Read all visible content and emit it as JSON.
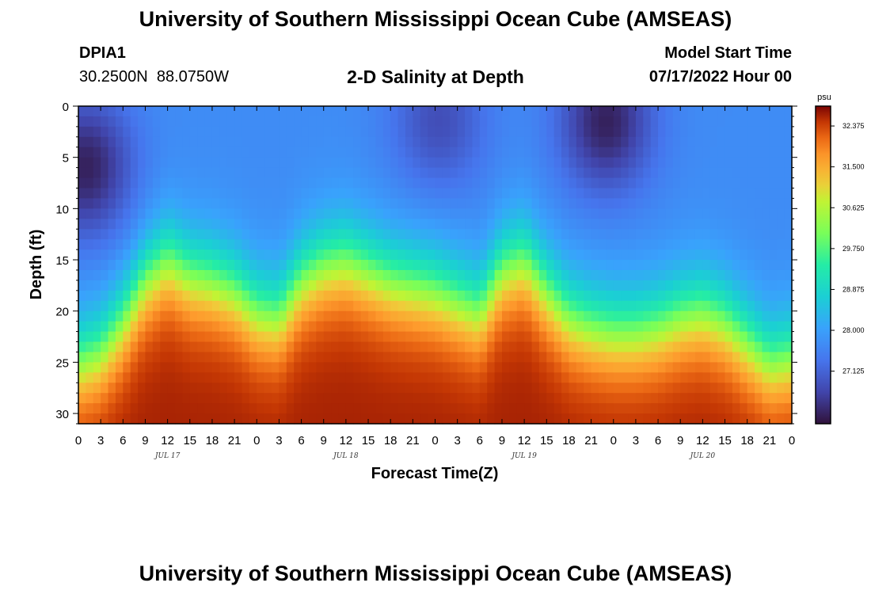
{
  "header": {
    "title": "University of Southern Mississippi Ocean Cube (AMSEAS)",
    "station": "DPIA1",
    "coordinates": "30.2500N  88.0750W",
    "subtitle": "2-D Salinity at Depth",
    "model_start_label": "Model Start Time",
    "model_start_value": "07/17/2022 Hour 00"
  },
  "footer": {
    "title": "University of Southern Mississippi Ocean Cube (AMSEAS)"
  },
  "chart_data": {
    "type": "heatmap",
    "title": "2-D Salinity at Depth",
    "xlabel": "Forecast Time(Z)",
    "ylabel": "Depth (ft)",
    "xlim": [
      0,
      96
    ],
    "ylim": [
      0,
      31
    ],
    "y_inverted": true,
    "x_ticks": [
      0,
      3,
      6,
      9,
      12,
      15,
      18,
      21,
      24,
      27,
      30,
      33,
      36,
      39,
      42,
      45,
      48,
      51,
      54,
      57,
      60,
      63,
      66,
      69,
      72,
      75,
      78,
      81,
      84,
      87,
      90,
      93,
      96
    ],
    "x_tick_labels": [
      "0",
      "3",
      "6",
      "9",
      "12",
      "15",
      "18",
      "21",
      "0",
      "3",
      "6",
      "9",
      "12",
      "15",
      "18",
      "21",
      "0",
      "3",
      "6",
      "9",
      "12",
      "15",
      "18",
      "21",
      "0",
      "3",
      "6",
      "9",
      "12",
      "15",
      "18",
      "21",
      "0"
    ],
    "day_labels": [
      {
        "label": "JUL 17",
        "x": 12
      },
      {
        "label": "JUL 18",
        "x": 36
      },
      {
        "label": "JUL 19",
        "x": 60
      },
      {
        "label": "JUL 20",
        "x": 84
      }
    ],
    "y_ticks": [
      0,
      5,
      10,
      15,
      20,
      25,
      30
    ],
    "y_tick_labels": [
      "0",
      "5",
      "10",
      "15",
      "20",
      "25",
      "30"
    ],
    "colorbar": {
      "unit": "psu",
      "min": 26.0,
      "max": 32.8,
      "ticks": [
        32.375,
        31.5,
        30.625,
        29.75,
        28.875,
        28.0,
        27.125
      ],
      "tick_labels": [
        "32.375",
        "31.500",
        "30.625",
        "29.750",
        "28.875",
        "28.000",
        "27.125"
      ]
    },
    "isohaline_depth_ft": {
      "time_h": [
        0,
        3,
        6,
        9,
        12,
        15,
        18,
        21,
        24,
        27,
        30,
        33,
        36,
        39,
        42,
        45,
        48,
        51,
        54,
        57,
        60,
        63,
        66,
        69,
        72,
        75,
        78,
        81,
        84,
        87,
        90,
        93,
        96
      ],
      "depth_ft": [
        25,
        24,
        21,
        17,
        15,
        16.5,
        17,
        18,
        20,
        20.5,
        17,
        15.5,
        15,
        16,
        17,
        17.5,
        18,
        19,
        20,
        16,
        15,
        18,
        20.5,
        21.5,
        22,
        22,
        21.5,
        20.5,
        20,
        21,
        23,
        25,
        24.5
      ]
    },
    "fresh_centers": [
      {
        "time_h": 1,
        "depth_ft": 6,
        "psu": 26.2
      },
      {
        "time_h": 48.5,
        "depth_ft": 1.5,
        "psu": 26.8
      },
      {
        "time_h": 71,
        "depth_ft": 1.5,
        "psu": 26.2
      }
    ],
    "salinity_max_psu": 32.6,
    "salinity_min_psu": 26.2
  }
}
